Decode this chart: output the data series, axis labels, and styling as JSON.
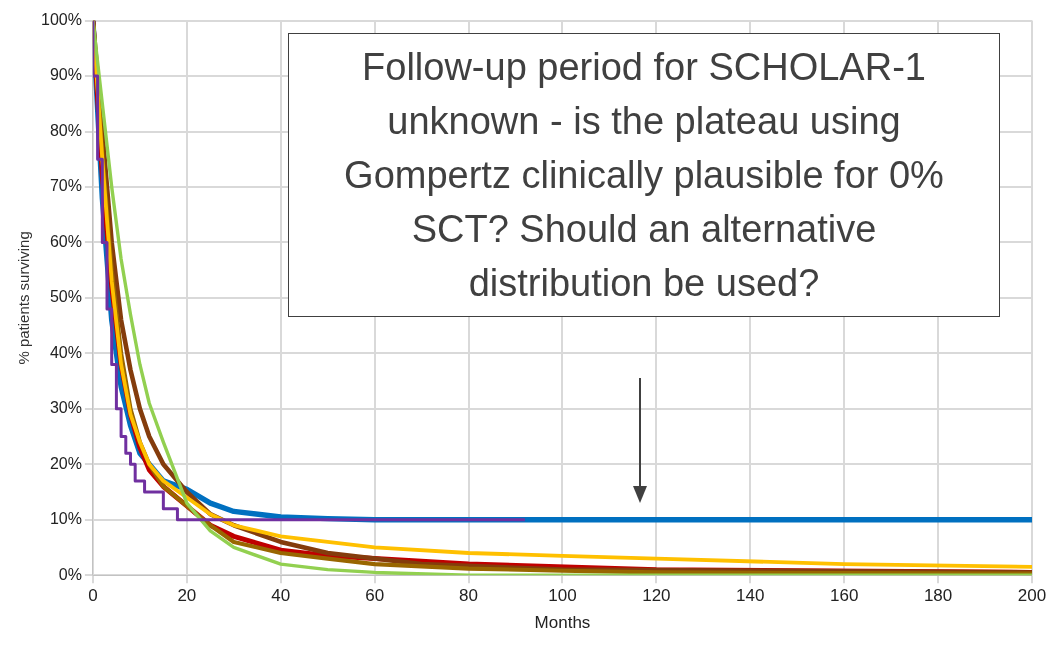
{
  "chart_data": {
    "type": "line",
    "xlabel": "Months",
    "ylabel": "% patients surviving",
    "xlim": [
      0,
      200
    ],
    "xticks": [
      0,
      20,
      40,
      60,
      80,
      100,
      120,
      140,
      160,
      180,
      200
    ],
    "ylim": [
      0,
      100
    ],
    "yticks": [
      {
        "value": 0,
        "label": "0%"
      },
      {
        "value": 10,
        "label": "10%"
      },
      {
        "value": 20,
        "label": "20%"
      },
      {
        "value": 30,
        "label": "30%"
      },
      {
        "value": 40,
        "label": "40%"
      },
      {
        "value": 50,
        "label": "50%"
      },
      {
        "value": 60,
        "label": "60%"
      },
      {
        "value": 70,
        "label": "70%"
      },
      {
        "value": 80,
        "label": "80%"
      },
      {
        "value": 90,
        "label": "90%"
      },
      {
        "value": 100,
        "label": "100%"
      }
    ],
    "grid": true,
    "legend": false,
    "marker": "none",
    "line_style": "solid",
    "annotations": [
      "Follow-up period for SCHOLAR-1 unknown - is the plateau using Gompertz clinically plausible for 0% SCT? Should an alternative distribution be used?"
    ],
    "series": [
      {
        "type": "step",
        "color": "#7030a0",
        "x": [
          0,
          1,
          2,
          3,
          4,
          5,
          6,
          7,
          8,
          9,
          11,
          15,
          18,
          21,
          92
        ],
        "values": [
          100,
          90,
          75,
          60,
          48,
          38,
          30,
          25,
          22,
          20,
          17,
          15,
          12,
          10,
          10
        ]
      },
      {
        "color": "#92d050",
        "x": [
          0,
          2,
          4,
          6,
          8,
          10,
          12,
          15,
          20,
          25,
          30,
          40,
          50,
          60,
          80,
          100,
          200
        ],
        "values": [
          100,
          85,
          70,
          57,
          47,
          38,
          31,
          24,
          13,
          8,
          5,
          2,
          1,
          0.5,
          0,
          0,
          0
        ]
      },
      {
        "color": "#ffc000",
        "x": [
          0,
          2,
          4,
          6,
          8,
          10,
          12,
          15,
          20,
          25,
          30,
          40,
          50,
          60,
          80,
          100,
          120,
          160,
          200
        ],
        "values": [
          100,
          75,
          53,
          38,
          29,
          24,
          20,
          17,
          14,
          11,
          9,
          7,
          6,
          5,
          4,
          3.5,
          3,
          2,
          1.5
        ]
      },
      {
        "color": "#996600",
        "x": [
          0,
          2,
          4,
          6,
          8,
          10,
          12,
          15,
          20,
          25,
          30,
          40,
          50,
          60,
          80,
          100,
          120,
          200
        ],
        "values": [
          100,
          76,
          55,
          40,
          30,
          24,
          20,
          16,
          12.5,
          9,
          6,
          4,
          3,
          2,
          1.2,
          0.8,
          0.5,
          0.3
        ]
      },
      {
        "color": "#843c0c",
        "x": [
          0,
          2,
          4,
          6,
          8,
          10,
          12,
          15,
          20,
          25,
          30,
          40,
          50,
          60,
          70,
          100,
          200
        ],
        "values": [
          100,
          80,
          60,
          46,
          37,
          30,
          25,
          20,
          15,
          11,
          9,
          6,
          4,
          3,
          2,
          1,
          0.5
        ]
      },
      {
        "color": "#c00000",
        "x": [
          0,
          2,
          4,
          6,
          8,
          10,
          12,
          15,
          20,
          25,
          30,
          40,
          50,
          60,
          80,
          120,
          200
        ],
        "values": [
          100,
          72,
          52,
          38,
          29,
          23,
          19,
          16,
          12.5,
          9,
          7,
          4.5,
          3.5,
          3,
          2,
          1,
          0.5
        ]
      },
      {
        "color": "#0070c0",
        "x": [
          0,
          2,
          4,
          6,
          8,
          10,
          12,
          15,
          20,
          25,
          30,
          40,
          50,
          60,
          100,
          200
        ],
        "values": [
          100,
          68,
          46,
          34,
          27,
          22,
          20,
          17,
          15.5,
          13,
          11.5,
          10.5,
          10.2,
          10,
          10,
          10
        ]
      }
    ]
  }
}
